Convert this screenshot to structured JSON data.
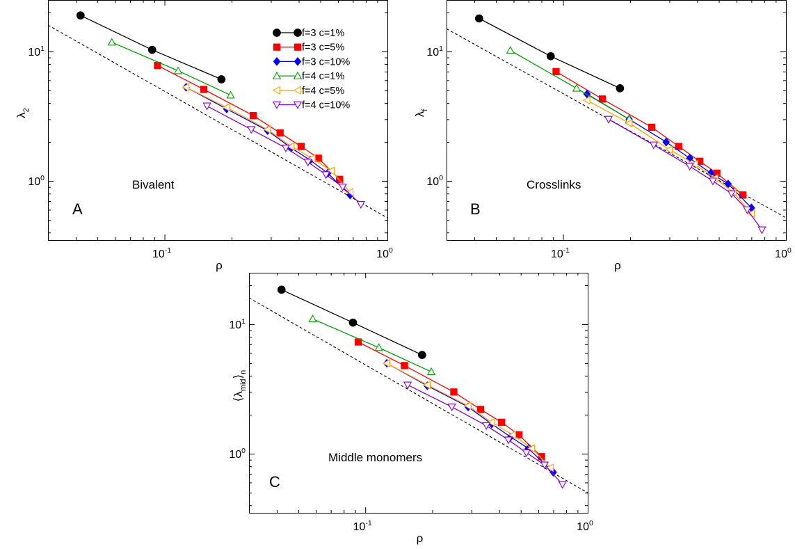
{
  "chart_data": [
    {
      "type": "line",
      "panel_label": "A",
      "annotation": "Bivalent",
      "xlabel": "ρ",
      "ylabel": "λ",
      "ylabel_sub": "2",
      "xscale": "log",
      "yscale": "log",
      "xlim": [
        0.03,
        1.0
      ],
      "ylim": [
        0.35,
        25
      ],
      "x_ticks": [
        {
          "base": "10",
          "exp": "-1"
        },
        {
          "base": "10",
          "exp": "0"
        }
      ],
      "y_ticks": [
        {
          "base": "10",
          "exp": "0"
        },
        {
          "base": "10",
          "exp": "1"
        }
      ],
      "grid": false,
      "legend": "top-right",
      "series": [
        {
          "name": "f=3 c=1%",
          "color": "#000000",
          "marker": "circle",
          "filled": true,
          "x": [
            0.042,
            0.088,
            0.18
          ],
          "y": [
            19.0,
            10.3,
            6.1
          ]
        },
        {
          "name": "f=3 c=5%",
          "color": "#ff0000",
          "marker": "square",
          "filled": true,
          "x": [
            0.093,
            0.15,
            0.25,
            0.33,
            0.41,
            0.49,
            0.61
          ],
          "y": [
            7.8,
            5.1,
            3.2,
            2.35,
            1.85,
            1.5,
            1.03
          ]
        },
        {
          "name": "f=3 c=10%",
          "color": "#0000ff",
          "marker": "diamond",
          "filled": true,
          "x": [
            0.125,
            0.19,
            0.29,
            0.37,
            0.45,
            0.54,
            0.68
          ],
          "y": [
            5.3,
            3.6,
            2.45,
            1.8,
            1.45,
            1.15,
            0.78
          ]
        },
        {
          "name": "f=4 c=1%",
          "color": "#00a000",
          "marker": "triangle-up",
          "filled": false,
          "x": [
            0.058,
            0.115,
            0.198
          ],
          "y": [
            11.8,
            7.1,
            4.6
          ]
        },
        {
          "name": "f=4 c=5%",
          "color": "#ffa500",
          "marker": "triangle-left",
          "filled": false,
          "x": [
            0.125,
            0.19,
            0.29,
            0.37,
            0.46,
            0.56,
            0.68
          ],
          "y": [
            5.3,
            3.7,
            2.5,
            1.85,
            1.5,
            1.2,
            0.82
          ]
        },
        {
          "name": "f=4 c=10%",
          "color": "#8b00cc",
          "marker": "triangle-down",
          "filled": false,
          "x": [
            0.155,
            0.245,
            0.35,
            0.44,
            0.53,
            0.63,
            0.76
          ],
          "y": [
            3.8,
            2.5,
            1.8,
            1.4,
            1.12,
            0.9,
            0.66
          ]
        }
      ],
      "reference_line": {
        "style": "dashed",
        "color": "#000000",
        "x": [
          0.03,
          1.0
        ],
        "y": [
          16.0,
          0.52
        ]
      }
    },
    {
      "type": "line",
      "panel_label": "B",
      "annotation": "Crosslinks",
      "xlabel": "ρ",
      "ylabel": "λ",
      "ylabel_sub": "f",
      "xscale": "log",
      "yscale": "log",
      "xlim": [
        0.03,
        1.0
      ],
      "ylim": [
        0.35,
        25
      ],
      "x_ticks": [
        {
          "base": "10",
          "exp": "-1"
        },
        {
          "base": "10",
          "exp": "0"
        }
      ],
      "y_ticks": [
        {
          "base": "10",
          "exp": "0"
        },
        {
          "base": "10",
          "exp": "1"
        }
      ],
      "grid": false,
      "legend": "none",
      "series": [
        {
          "name": "f=3 c=1%",
          "color": "#000000",
          "marker": "circle",
          "filled": true,
          "x": [
            0.042,
            0.088,
            0.18
          ],
          "y": [
            18.0,
            9.2,
            5.2
          ]
        },
        {
          "name": "f=3 c=5%",
          "color": "#ff0000",
          "marker": "square",
          "filled": true,
          "x": [
            0.093,
            0.15,
            0.25,
            0.33,
            0.41,
            0.49,
            0.64
          ],
          "y": [
            7.0,
            4.3,
            2.6,
            1.85,
            1.42,
            1.15,
            0.78
          ]
        },
        {
          "name": "f=3 c=10%",
          "color": "#0000ff",
          "marker": "diamond",
          "filled": true,
          "x": [
            0.128,
            0.198,
            0.29,
            0.37,
            0.46,
            0.55,
            0.7
          ],
          "y": [
            4.7,
            3.0,
            2.0,
            1.5,
            1.15,
            0.95,
            0.62
          ]
        },
        {
          "name": "f=4 c=1%",
          "color": "#00a000",
          "marker": "triangle-up",
          "filled": false,
          "x": [
            0.058,
            0.115,
            0.198
          ],
          "y": [
            10.2,
            5.2,
            3.0
          ]
        },
        {
          "name": "f=4 c=5%",
          "color": "#ffa500",
          "marker": "triangle-left",
          "filled": false,
          "x": [
            0.128,
            0.198,
            0.3,
            0.39,
            0.48,
            0.58,
            0.7
          ],
          "y": [
            4.2,
            2.8,
            1.75,
            1.35,
            1.05,
            0.82,
            0.56
          ]
        },
        {
          "name": "f=4 c=10%",
          "color": "#8b00cc",
          "marker": "triangle-down",
          "filled": false,
          "x": [
            0.16,
            0.255,
            0.37,
            0.47,
            0.57,
            0.67,
            0.78
          ],
          "y": [
            3.0,
            1.9,
            1.3,
            1.0,
            0.8,
            0.6,
            0.42
          ]
        }
      ],
      "reference_line": {
        "style": "dashed",
        "color": "#000000",
        "x": [
          0.03,
          1.0
        ],
        "y": [
          15.0,
          0.52
        ]
      }
    },
    {
      "type": "line",
      "panel_label": "C",
      "annotation": "Middle monomers",
      "xlabel": "ρ",
      "ylabel": "⟨λ",
      "ylabel_sub": "mid",
      "ylabel_suffix": "⟩",
      "ylabel_sub2": "n",
      "xscale": "log",
      "yscale": "log",
      "xlim": [
        0.03,
        1.0
      ],
      "ylim": [
        0.35,
        25
      ],
      "x_ticks": [
        {
          "base": "10",
          "exp": "-1"
        },
        {
          "base": "10",
          "exp": "0"
        }
      ],
      "y_ticks": [
        {
          "base": "10",
          "exp": "0"
        },
        {
          "base": "10",
          "exp": "1"
        }
      ],
      "grid": false,
      "legend": "none",
      "series": [
        {
          "name": "f=3 c=1%",
          "color": "#000000",
          "marker": "circle",
          "filled": true,
          "x": [
            0.042,
            0.088,
            0.18
          ],
          "y": [
            18.5,
            10.3,
            5.8
          ]
        },
        {
          "name": "f=3 c=5%",
          "color": "#ff0000",
          "marker": "square",
          "filled": true,
          "x": [
            0.093,
            0.15,
            0.25,
            0.33,
            0.41,
            0.49,
            0.62
          ],
          "y": [
            7.3,
            4.8,
            3.0,
            2.2,
            1.75,
            1.4,
            0.95
          ]
        },
        {
          "name": "f=3 c=10%",
          "color": "#0000ff",
          "marker": "diamond",
          "filled": true,
          "x": [
            0.125,
            0.19,
            0.29,
            0.37,
            0.45,
            0.54,
            0.7
          ],
          "y": [
            5.0,
            3.35,
            2.3,
            1.7,
            1.35,
            1.1,
            0.72
          ]
        },
        {
          "name": "f=4 c=1%",
          "color": "#00a000",
          "marker": "triangle-up",
          "filled": false,
          "x": [
            0.058,
            0.115,
            0.198
          ],
          "y": [
            11.0,
            6.6,
            4.3
          ]
        },
        {
          "name": "f=4 c=5%",
          "color": "#ffa500",
          "marker": "triangle-left",
          "filled": false,
          "x": [
            0.125,
            0.19,
            0.29,
            0.37,
            0.46,
            0.56,
            0.68
          ],
          "y": [
            5.0,
            3.4,
            2.35,
            1.75,
            1.4,
            1.1,
            0.78
          ]
        },
        {
          "name": "f=4 c=10%",
          "color": "#8b00cc",
          "marker": "triangle-down",
          "filled": false,
          "x": [
            0.155,
            0.245,
            0.35,
            0.44,
            0.53,
            0.64,
            0.77
          ],
          "y": [
            3.4,
            2.3,
            1.65,
            1.28,
            1.02,
            0.82,
            0.58
          ]
        }
      ],
      "reference_line": {
        "style": "dashed",
        "color": "#000000",
        "x": [
          0.03,
          1.0
        ],
        "y": [
          16.0,
          0.5
        ]
      }
    }
  ]
}
